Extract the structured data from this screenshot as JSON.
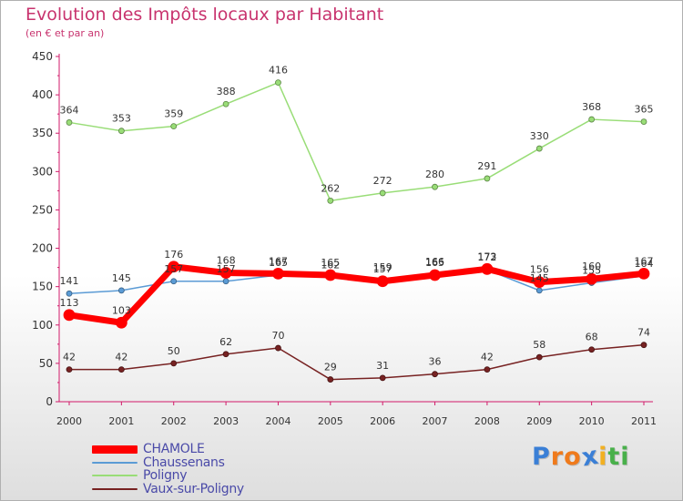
{
  "chart_data": {
    "type": "line",
    "title": "Evolution des Impôts locaux par Habitant",
    "subtitle": "(en € et par an)",
    "categories": [
      "2000",
      "2001",
      "2002",
      "2003",
      "2004",
      "2005",
      "2006",
      "2007",
      "2008",
      "2009",
      "2010",
      "2011"
    ],
    "ylim": [
      0,
      450
    ],
    "yticks": [
      0,
      50,
      100,
      150,
      200,
      250,
      300,
      350,
      400,
      450
    ],
    "grid": false,
    "legend_position": "bottom-left",
    "series": [
      {
        "name": "CHAMOLE",
        "color": "#ff0000",
        "values": [
          113,
          103,
          176,
          168,
          167,
          165,
          157,
          165,
          173,
          156,
          160,
          167
        ],
        "labels": [
          "113",
          "103",
          "176",
          "168",
          "167",
          "165",
          "157",
          "165",
          "173",
          "156",
          "160",
          "167"
        ]
      },
      {
        "name": "Chaussenans",
        "color": "#5b9bd5",
        "values": [
          141,
          145,
          157,
          157,
          165,
          162,
          159,
          166,
          172,
          145,
          155,
          164
        ],
        "labels": [
          "141",
          "145",
          "157",
          "157",
          "165",
          "162",
          "159",
          "166",
          "172",
          "145",
          "155",
          "164"
        ]
      },
      {
        "name": "Poligny",
        "color": "#99dd77",
        "values": [
          364,
          353,
          359,
          388,
          416,
          262,
          272,
          280,
          291,
          330,
          368,
          365
        ],
        "labels": [
          "364",
          "353",
          "359",
          "388",
          "416",
          "262",
          "272",
          "280",
          "291",
          "330",
          "368",
          "365"
        ]
      },
      {
        "name": "Vaux-sur-Poligny",
        "color": "#772222",
        "values": [
          42,
          42,
          50,
          62,
          70,
          29,
          31,
          36,
          42,
          58,
          68,
          74
        ],
        "labels": [
          "42",
          "42",
          "50",
          "62",
          "70",
          "29",
          "31",
          "36",
          "42",
          "58",
          "68",
          "74"
        ]
      }
    ]
  },
  "logo": {
    "letters": [
      "P",
      "r",
      "o",
      "x",
      "i",
      "t",
      "i"
    ],
    "colors": [
      "#3a7fd6",
      "#ef7a1c",
      "#ef7a1c",
      "#3a7fd6",
      "#f2b021",
      "#48b04a",
      "#48b04a"
    ]
  }
}
